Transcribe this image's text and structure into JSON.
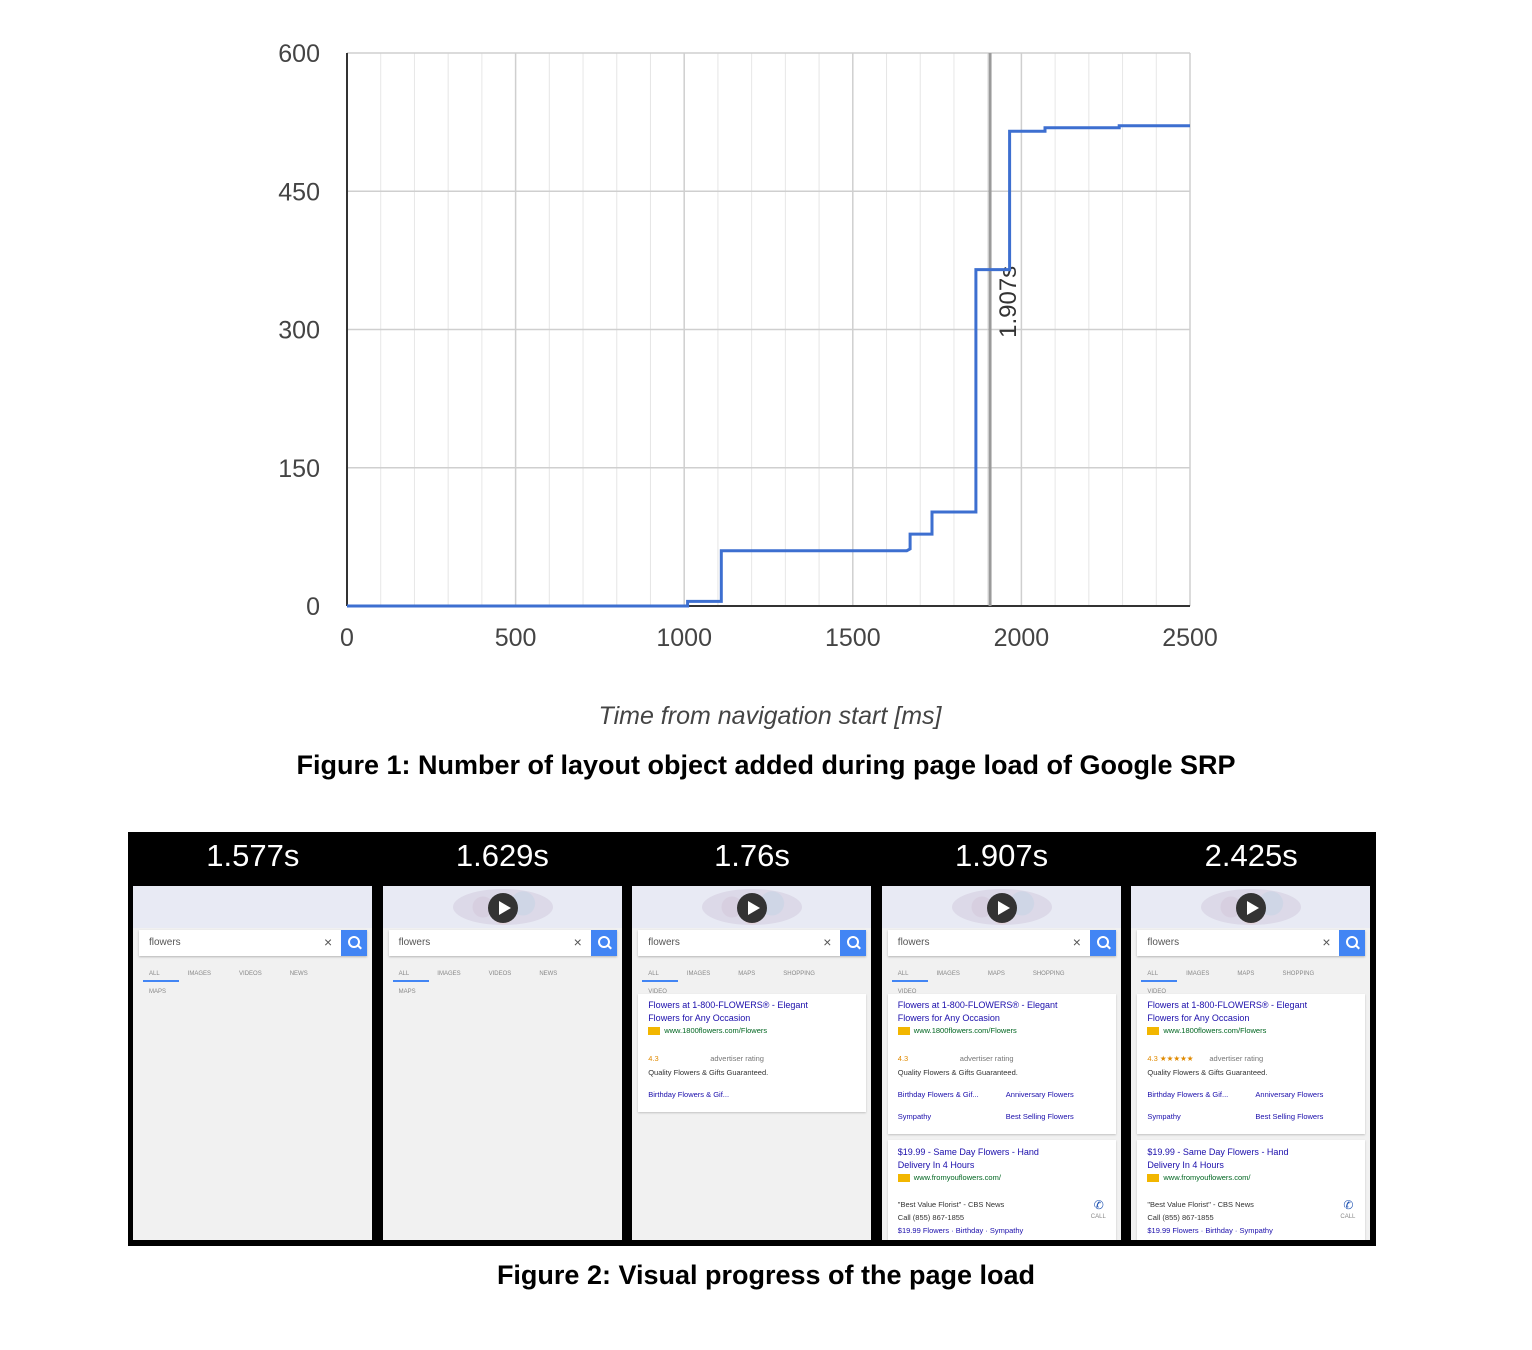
{
  "chart_data": {
    "type": "line",
    "step": true,
    "title": "",
    "xlabel": "Time from navigation start [ms]",
    "ylabel": "",
    "xlim": [
      0,
      2500
    ],
    "ylim": [
      0,
      600
    ],
    "xticks": [
      0,
      500,
      1000,
      1500,
      2000,
      2500
    ],
    "yticks": [
      0,
      150,
      300,
      450,
      600
    ],
    "grid": true,
    "series": [
      {
        "color": "#3d6fd0",
        "x": [
          0,
          1010,
          1010,
          1110,
          1110,
          1660,
          1670,
          1670,
          1735,
          1735,
          1865,
          1865,
          1965,
          1965,
          2070,
          2070,
          2290,
          2290,
          2500
        ],
        "y": [
          0,
          0,
          5,
          5,
          60,
          60,
          62,
          78,
          78,
          102,
          102,
          365,
          365,
          515,
          515,
          519,
          519,
          521,
          521
        ]
      }
    ],
    "annotations": [
      {
        "x": 1907,
        "label": "1.907s",
        "type": "vertical-line"
      }
    ]
  },
  "figure1": {
    "caption": "Figure 1: Number of layout object added during page load of Google SRP"
  },
  "figure2": {
    "caption": "Figure 2: Visual progress of the page load",
    "frames": [
      {
        "time": "1.577s",
        "query": "flowers",
        "tabs": [
          "ALL",
          "IMAGES",
          "VIDEOS",
          "NEWS",
          "MAPS"
        ]
      },
      {
        "time": "1.629s",
        "query": "flowers",
        "tabs": [
          "ALL",
          "IMAGES",
          "VIDEOS",
          "NEWS",
          "MAPS"
        ]
      },
      {
        "time": "1.76s",
        "query": "flowers",
        "tabs": [
          "ALL",
          "IMAGES",
          "MAPS",
          "SHOPPING",
          "VIDEO"
        ]
      },
      {
        "time": "1.907s",
        "query": "flowers",
        "tabs": [
          "ALL",
          "IMAGES",
          "MAPS",
          "SHOPPING",
          "VIDEO"
        ]
      },
      {
        "time": "2.425s",
        "query": "flowers",
        "tabs": [
          "ALL",
          "IMAGES",
          "MAPS",
          "SHOPPING",
          "VIDEO"
        ]
      }
    ],
    "ad1": {
      "title1": "Flowers at 1-800-FLOWERS® - Elegant",
      "title2": "Flowers for Any Occasion",
      "url": "www.1800flowers.com/Flowers",
      "rating": "4.3",
      "rating_stars": "4.3 ★★★★★",
      "rating_label": "advertiser rating",
      "desc": "Quality Flowers & Gifts Guaranteed.",
      "link1": "Birthday Flowers & Gif...",
      "link2": "Anniversary Flowers",
      "link3": "Sympathy",
      "link4": "Best Selling Flowers"
    },
    "ad2": {
      "title1": "$19.99 - Same Day Flowers - Hand",
      "title2": "Delivery In 4 Hours",
      "url": "www.fromyouflowers.com/",
      "quote": "\"Best Value Florist\" - CBS News",
      "phone": "Call (855) 867-1855",
      "links": "$19.99 Flowers · Birthday · Sympathy",
      "call": "CALL"
    }
  }
}
